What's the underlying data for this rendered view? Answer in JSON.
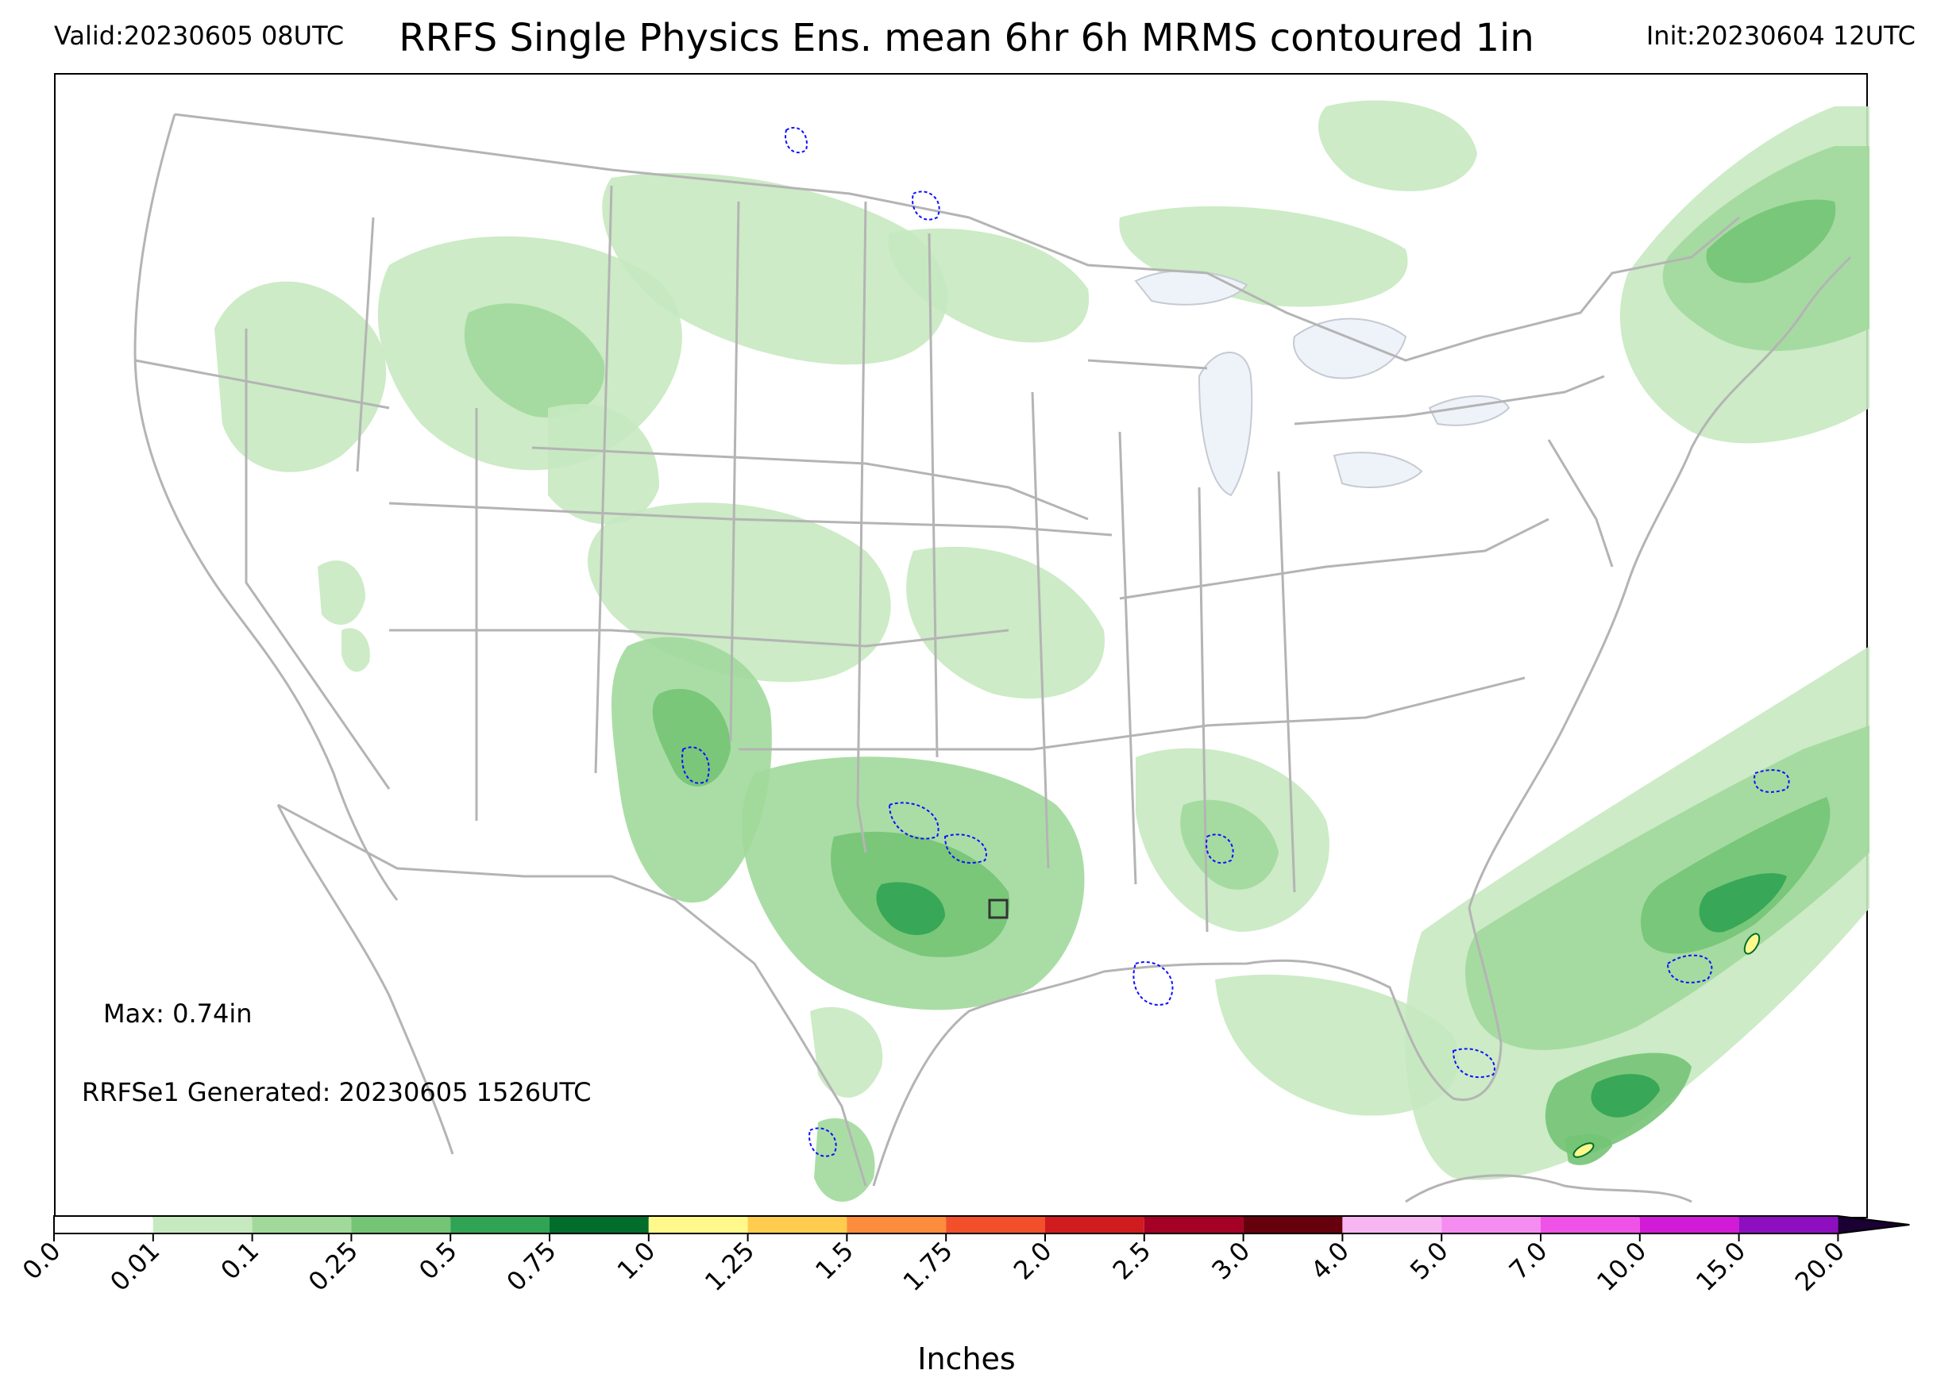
{
  "header": {
    "valid": "Valid:20230605 08UTC",
    "title": "RRFS Single Physics Ens. mean 6hr 6h MRMS contoured 1in",
    "init": "Init:20230604 12UTC"
  },
  "annotations": {
    "max": "Max: 0.74in",
    "generated": "RRFSe1 Generated: 20230605 1526UTC"
  },
  "colorbar": {
    "label": "Inches",
    "ticks": [
      "0.0",
      "0.01",
      "0.1",
      "0.25",
      "0.5",
      "0.75",
      "1.0",
      "1.25",
      "1.5",
      "1.75",
      "2.0",
      "2.5",
      "3.0",
      "4.0",
      "5.0",
      "7.0",
      "10.0",
      "15.0",
      "20.0"
    ],
    "colors": [
      "#ffffff",
      "#c7e9c0",
      "#a1d99b",
      "#74c476",
      "#31a354",
      "#006d2c",
      "#fff98c",
      "#ffcc4d",
      "#fd8d3c",
      "#f1502a",
      "#d01c1f",
      "#a50026",
      "#67000d",
      "#f7b6f2",
      "#f58cef",
      "#ee52e6",
      "#d21bd6",
      "#8e0fc0"
    ],
    "extend_color": "#1a0033"
  },
  "map_colors": {
    "border": "#b4b4b4",
    "lake": "#eef3fa",
    "contour": "#1010ff"
  }
}
